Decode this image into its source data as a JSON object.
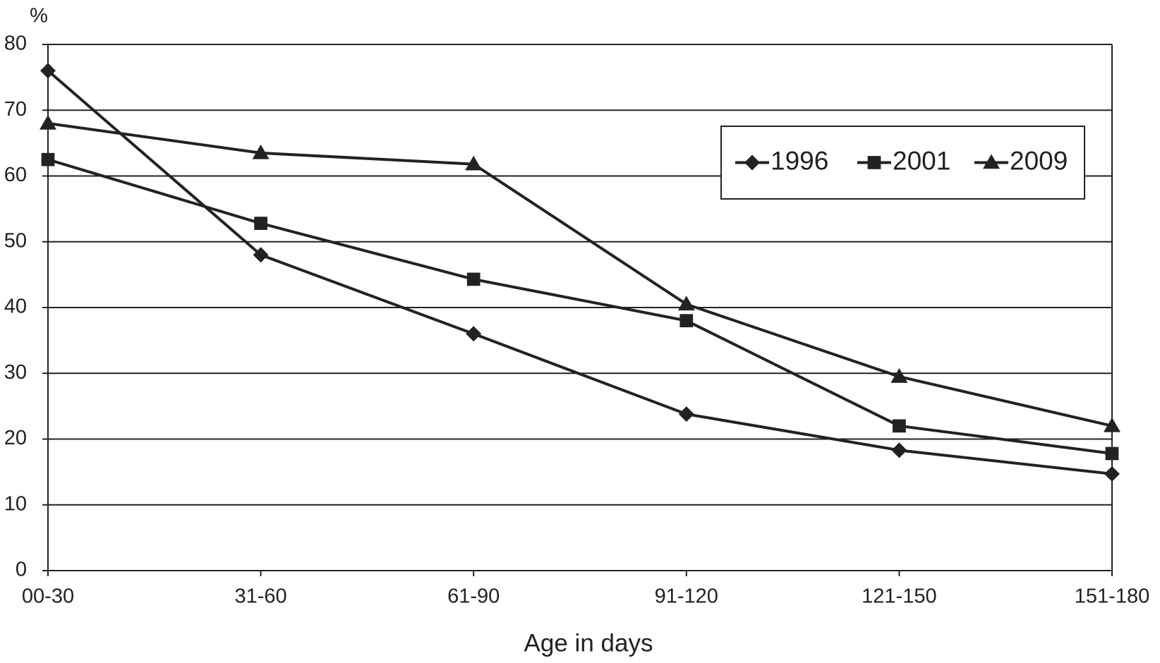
{
  "chart_data": {
    "type": "line",
    "y_label": "%",
    "x_label": "Age in days",
    "categories": [
      "00-30",
      "31-60",
      "61-90",
      "91-120",
      "121-150",
      "151-180"
    ],
    "series": [
      {
        "name": "1996",
        "color": "#222222",
        "marker": "diamond",
        "values": [
          76,
          48,
          36,
          23.8,
          18.3,
          14.7
        ]
      },
      {
        "name": "2001",
        "color": "#222222",
        "marker": "square",
        "values": [
          62.5,
          52.8,
          44.3,
          38,
          22,
          17.8
        ]
      },
      {
        "name": "2009",
        "color": "#222222",
        "marker": "triangle",
        "values": [
          68,
          63.5,
          61.8,
          40.5,
          29.5,
          22
        ]
      }
    ],
    "ylim": [
      0,
      80
    ],
    "yticks": [
      0,
      10,
      20,
      30,
      40,
      50,
      60,
      70,
      80
    ],
    "grid": true,
    "legend": "upper right"
  }
}
